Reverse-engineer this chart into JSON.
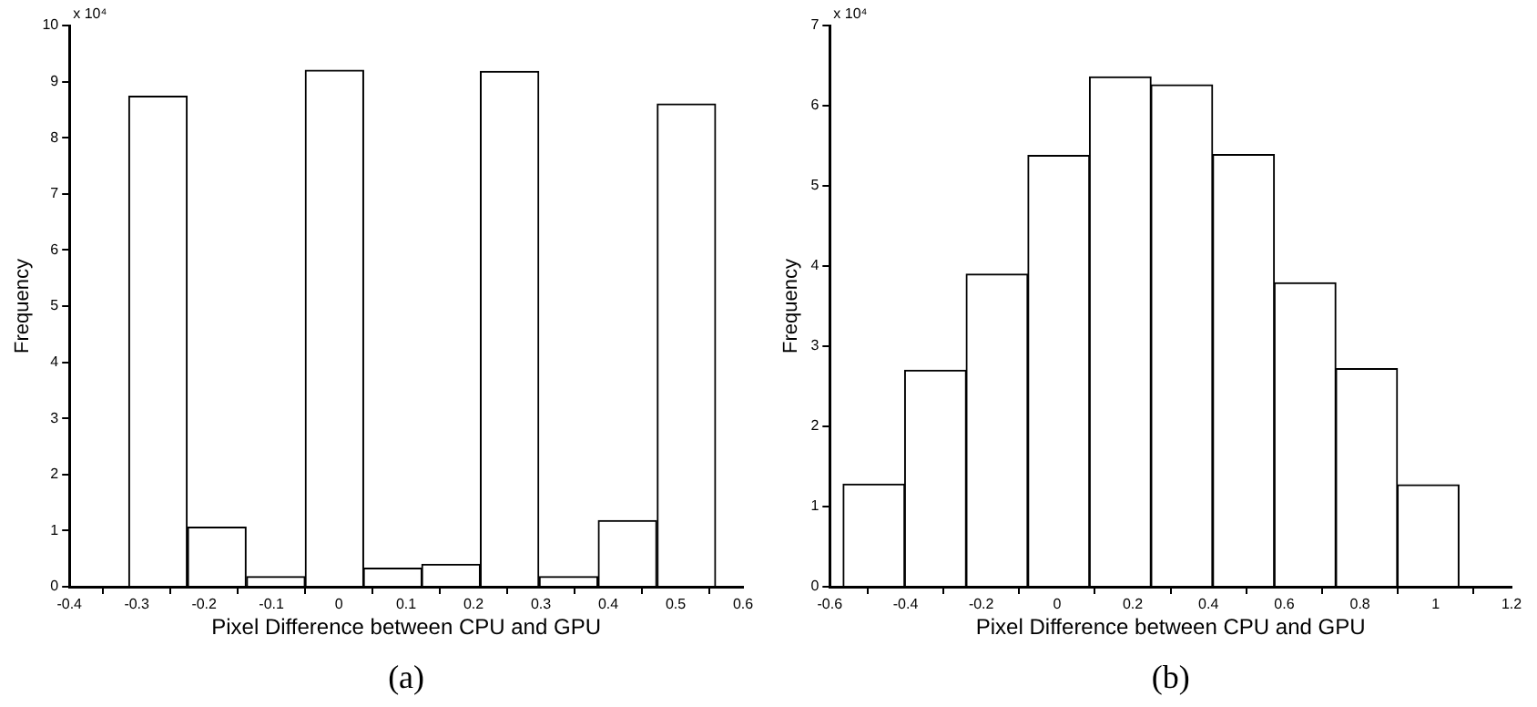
{
  "chart_data": [
    {
      "type": "histogram",
      "xlabel": "Pixel Difference between CPU and GPU",
      "ylabel": "Frequency",
      "color": "#ffffff",
      "bins": [
        -0.312,
        -0.225,
        -0.137,
        -0.05,
        0.037,
        0.123,
        0.21,
        0.297,
        0.385,
        0.472,
        0.56
      ],
      "values": [
        8.74,
        1.06,
        0.18,
        9.2,
        0.33,
        0.4,
        9.18,
        0.18,
        1.18,
        8.6
      ],
      "xlim": [
        -0.4,
        0.6
      ],
      "xticks": [
        -0.4,
        -0.3,
        -0.2,
        -0.1,
        0,
        0.1,
        0.2,
        0.3,
        0.4,
        0.5,
        0.6
      ],
      "ylim": [
        0,
        10
      ],
      "yticks": [
        0,
        1,
        2,
        3,
        4,
        5,
        6,
        7,
        8,
        9,
        10
      ],
      "annotations": [
        "x 10⁴",
        "(a)"
      ],
      "grid": false,
      "legend": false
    },
    {
      "type": "histogram",
      "xlabel": "Pixel Difference between CPU and GPU",
      "ylabel": "Frequency",
      "color": "#ffffff",
      "bins": [
        -0.565,
        -0.402,
        -0.24,
        -0.077,
        0.086,
        0.248,
        0.411,
        0.574,
        0.736,
        0.899,
        1.061
      ],
      "values": [
        1.28,
        2.7,
        3.9,
        5.38,
        6.36,
        6.26,
        5.39,
        3.79,
        2.72,
        1.27
      ],
      "xlim": [
        -0.6,
        1.2
      ],
      "xticks": [
        -0.6,
        -0.4,
        -0.2,
        0,
        0.2,
        0.4,
        0.6,
        0.8,
        1,
        1.2
      ],
      "ylim": [
        0,
        7
      ],
      "yticks": [
        0,
        1,
        2,
        3,
        4,
        5,
        6,
        7
      ],
      "annotations": [
        "x 10⁴",
        "(b)"
      ],
      "grid": false,
      "legend": false
    }
  ]
}
